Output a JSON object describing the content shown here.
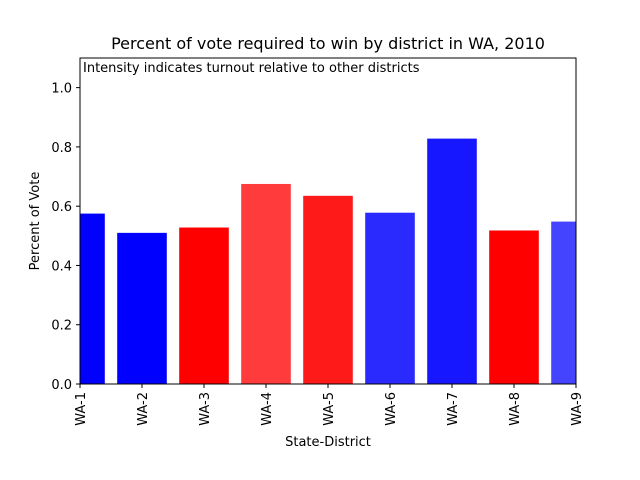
{
  "chart_data": {
    "type": "bar",
    "title": "Percent of vote required to win by district in WA, 2010",
    "annotation": "Intensity indicates turnout relative to other districts",
    "xlabel": "State-District",
    "ylabel": "Percent of Vote",
    "ylim": [
      0,
      1.1
    ],
    "yticks": [
      "0.0",
      "0.2",
      "0.4",
      "0.6",
      "0.8",
      "1.0"
    ],
    "ytick_values": [
      0,
      0.2,
      0.4,
      0.6,
      0.8,
      1.0
    ],
    "grid": false,
    "categories": [
      "WA-1",
      "WA-2",
      "WA-3",
      "WA-4",
      "WA-5",
      "WA-6",
      "WA-7",
      "WA-8",
      "WA-9"
    ],
    "values": [
      0.575,
      0.51,
      0.528,
      0.675,
      0.635,
      0.578,
      0.828,
      0.518,
      0.548
    ],
    "bar_colors": [
      "#0000ff",
      "#0000ff",
      "#ff0000",
      "#ff3b3b",
      "#ff1a1a",
      "#2a2aff",
      "#1717ff",
      "#ff0000",
      "#4444ff"
    ]
  }
}
